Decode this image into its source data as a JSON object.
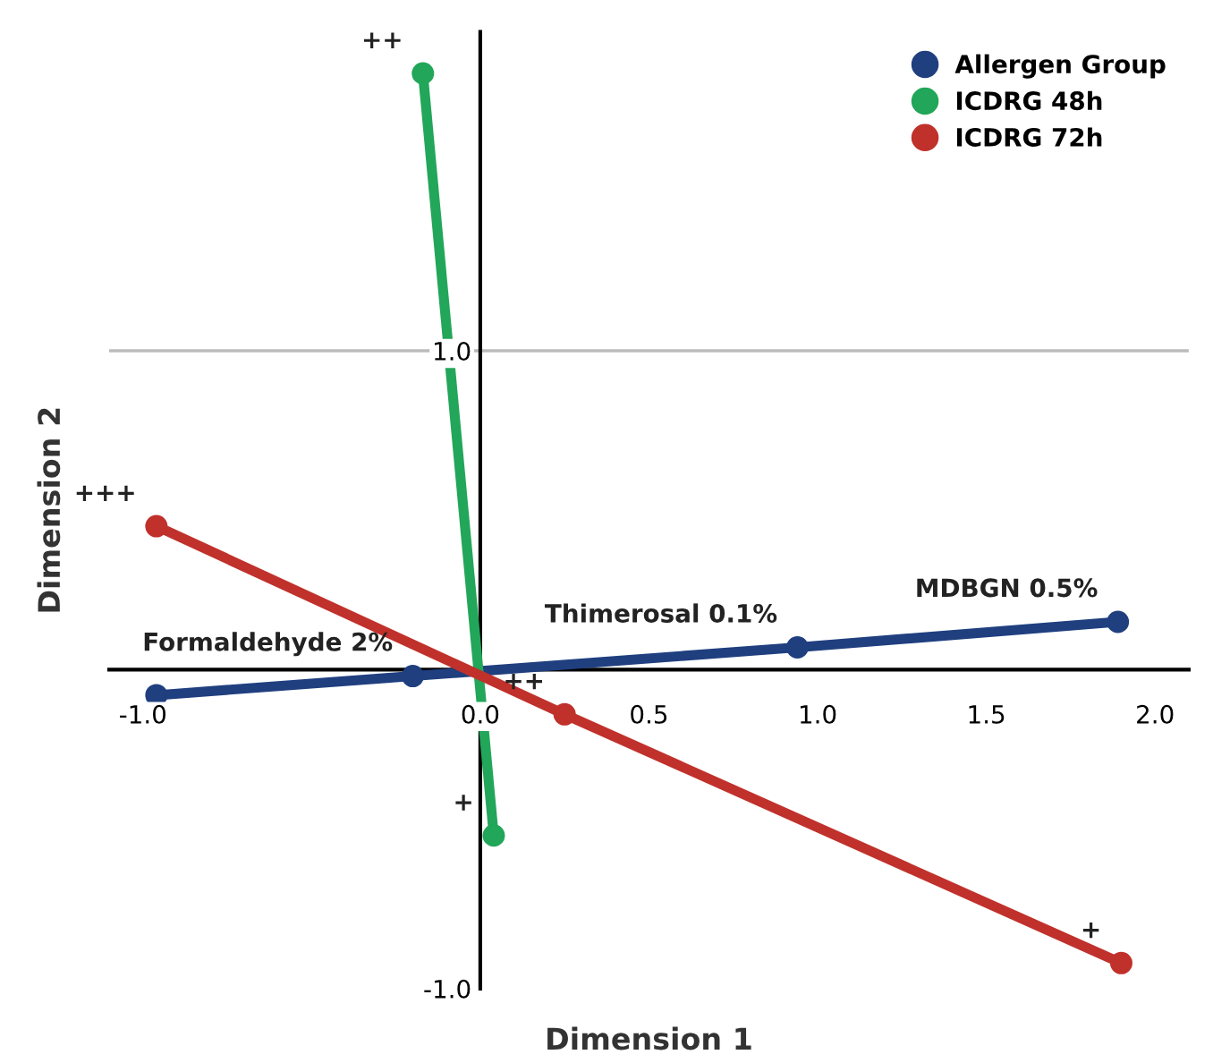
{
  "chart_data": {
    "type": "line",
    "xlabel": "Dimension 1",
    "ylabel": "Dimension 2",
    "xlim": [
      -1.1,
      2.1
    ],
    "ylim": [
      -1.0,
      2.0
    ],
    "xticks": [
      {
        "value": -1.0,
        "label": "-1.0"
      },
      {
        "value": 0.0,
        "label": "0.0"
      },
      0.5,
      {
        "value": 1.0,
        "label": "1.0"
      },
      1.5,
      {
        "value": 2.0,
        "label": "2.0"
      }
    ],
    "yticks": [
      {
        "value": -1.0,
        "label": "-1.0"
      },
      {
        "value": 1.0,
        "label": "1.0"
      }
    ],
    "grid": false,
    "legend": "top right",
    "marker": "circle",
    "line_style": "solid",
    "ref_lines": [
      {
        "axis": "y",
        "value": 1.0,
        "color": "#bbbbbb"
      }
    ],
    "series": [
      {
        "name": "Allergen Group",
        "color": "#1f3f7f",
        "x": [
          -0.96,
          -0.2,
          0.94,
          1.89
        ],
        "values": [
          -0.08,
          -0.02,
          0.07,
          0.15
        ]
      },
      {
        "name": "ICDRG 48h",
        "color": "#22a659",
        "x": [
          -0.17,
          0.04
        ],
        "values": [
          1.87,
          -0.52
        ]
      },
      {
        "name": "ICDRG 72h",
        "color": "#c0312b",
        "x": [
          -0.96,
          0.25,
          1.9
        ],
        "values": [
          0.45,
          -0.14,
          -0.92
        ]
      }
    ],
    "annotations": [
      {
        "text": "Formaldehyde 2%",
        "x": -0.2,
        "y": -0.02
      },
      {
        "text": "Thimerosal 0.1%",
        "x": 0.94,
        "y": 0.07
      },
      {
        "text": "MDBGN 0.5%",
        "x": 1.89,
        "y": 0.15
      },
      {
        "text": "++",
        "x": -0.17,
        "y": 1.87
      },
      {
        "text": "+",
        "x": 0.04,
        "y": -0.52
      },
      {
        "text": "+++",
        "x": -0.96,
        "y": 0.45
      },
      {
        "text": "++",
        "x": 0.25,
        "y": -0.14
      },
      {
        "text": "+",
        "x": 1.9,
        "y": -0.92
      }
    ]
  }
}
